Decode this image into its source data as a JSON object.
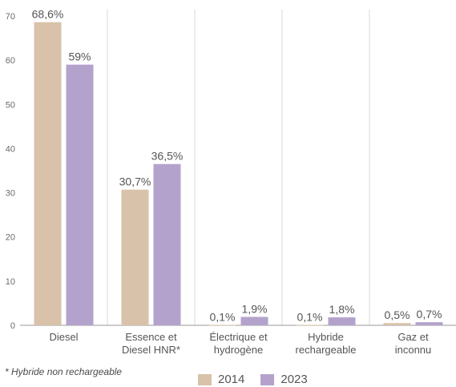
{
  "chart_data": {
    "type": "bar",
    "categories": [
      [
        "Diesel"
      ],
      [
        "Essence et",
        "Diesel HNR*"
      ],
      [
        "Électrique et",
        "hydrogène"
      ],
      [
        "Hybride",
        "rechargeable"
      ],
      [
        "Gaz et",
        "inconnu"
      ]
    ],
    "series": [
      {
        "name": "2014",
        "color": "#d8c2a9",
        "values": [
          68.6,
          30.7,
          0.1,
          0.1,
          0.5
        ],
        "labels": [
          "68,6%",
          "30,7%",
          "0,1%",
          "0,1%",
          "0,5%"
        ]
      },
      {
        "name": "2023",
        "color": "#b3a3cc",
        "values": [
          59,
          36.5,
          1.9,
          1.8,
          0.7
        ],
        "labels": [
          "59%",
          "36,5%",
          "1,9%",
          "1,8%",
          "0,7%"
        ]
      }
    ],
    "ylim": [
      0,
      70
    ],
    "yticks": [
      0,
      10,
      20,
      30,
      40,
      50,
      60,
      70
    ],
    "grid": "vertical category separators",
    "legend_placement": "bottom-center",
    "footnote": "* Hybride non rechargeable"
  }
}
